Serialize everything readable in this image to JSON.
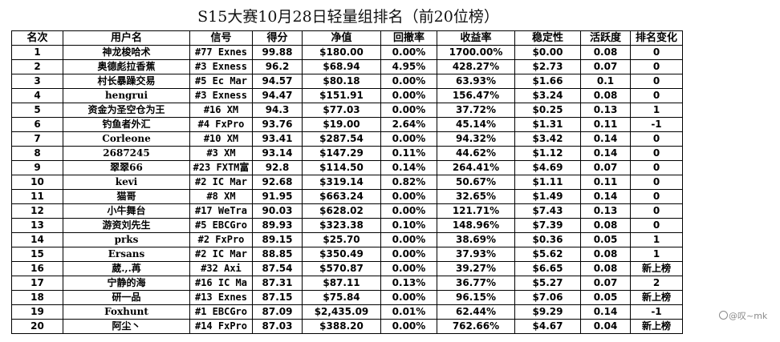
{
  "title": "S15大赛10月28日轻量组排名（前20位榜）",
  "columns": [
    "名次",
    "用户名",
    "信号",
    "得分",
    "净值",
    "回撤率",
    "收益率",
    "稳定性",
    "活跃度",
    "排名变化"
  ],
  "rows": [
    [
      "1",
      "神龙梭哈术",
      "#77 Exnes",
      "99.88",
      "$180.00",
      "0.00%",
      "1700.00%",
      "$0.00",
      "0.08",
      "0"
    ],
    [
      "2",
      "奥德彪拉香蕉",
      "#3 Exness",
      "96.2",
      "$68.94",
      "4.95%",
      "428.27%",
      "$2.73",
      "0.07",
      "0"
    ],
    [
      "3",
      "村长暴躁交易",
      "#5 Ec Mar",
      "94.57",
      "$80.18",
      "0.00%",
      "63.93%",
      "$1.66",
      "0.1",
      "0"
    ],
    [
      "4",
      "hengrui",
      "#3 Exness",
      "94.47",
      "$151.91",
      "0.00%",
      "156.47%",
      "$3.24",
      "0.08",
      "0"
    ],
    [
      "5",
      "资金为圣空仓为王",
      "#16 XM",
      "94.3",
      "$77.03",
      "0.00%",
      "37.72%",
      "$0.25",
      "0.13",
      "1"
    ],
    [
      "6",
      "钓鱼者外汇",
      "#4 FxPro",
      "93.76",
      "$19.00",
      "2.64%",
      "45.14%",
      "$1.31",
      "0.11",
      "-1"
    ],
    [
      "7",
      "Corleone",
      "#10 XM",
      "93.41",
      "$287.54",
      "0.00%",
      "94.32%",
      "$3.42",
      "0.14",
      "0"
    ],
    [
      "8",
      "2687245",
      "#3 XM",
      "93.14",
      "$147.29",
      "0.11%",
      "44.62%",
      "$1.12",
      "0.14",
      "0"
    ],
    [
      "9",
      "翠翠66",
      "#23 FXTM富",
      "92.8",
      "$114.50",
      "0.14%",
      "264.41%",
      "$4.69",
      "0.07",
      "0"
    ],
    [
      "10",
      "kevi",
      "#2 IC Mar",
      "92.68",
      "$319.14",
      "0.82%",
      "50.67%",
      "$1.11",
      "0.11",
      "0"
    ],
    [
      "11",
      "猫哥",
      "#8 XM",
      "91.95",
      "$663.24",
      "0.00%",
      "32.65%",
      "$1.49",
      "0.14",
      "0"
    ],
    [
      "12",
      "小牛舞台",
      "#17 WeTra",
      "90.03",
      "$628.02",
      "0.00%",
      "121.71%",
      "$7.43",
      "0.13",
      "0"
    ],
    [
      "13",
      "游资刘先生",
      "#5 EBCGro",
      "89.93",
      "$323.38",
      "0.10%",
      "148.96%",
      "$7.39",
      "0.08",
      "0"
    ],
    [
      "14",
      "prks",
      "#2 FxPro",
      "89.15",
      "$25.70",
      "0.00%",
      "38.69%",
      "$0.36",
      "0.05",
      "1"
    ],
    [
      "15",
      "Ersans",
      "#2 IC Mar",
      "88.85",
      "$350.49",
      "0.00%",
      "37.93%",
      "$5.62",
      "0.08",
      "1"
    ],
    [
      "16",
      "葳.,.苒",
      "#32 Axi",
      "87.54",
      "$570.87",
      "0.00%",
      "39.27%",
      "$6.65",
      "0.08",
      "新上榜"
    ],
    [
      "17",
      "宁静的海",
      "#16 IC Ma",
      "87.31",
      "$87.11",
      "0.13%",
      "36.77%",
      "$5.27",
      "0.07",
      "2"
    ],
    [
      "18",
      "研一品",
      "#13 Exnes",
      "87.15",
      "$75.84",
      "0.00%",
      "96.15%",
      "$7.06",
      "0.05",
      "新上榜"
    ],
    [
      "19",
      "Foxhunt",
      "#1 EBCGro",
      "87.09",
      "$2,435.09",
      "0.01%",
      "62.44%",
      "$9.29",
      "0.14",
      "-1"
    ],
    [
      "20",
      "阿尘丶",
      "#14 FxPro",
      "87.03",
      "$388.20",
      "0.00%",
      "762.66%",
      "$4.67",
      "0.04",
      "新上榜"
    ]
  ],
  "watermark": "@叹~mk"
}
